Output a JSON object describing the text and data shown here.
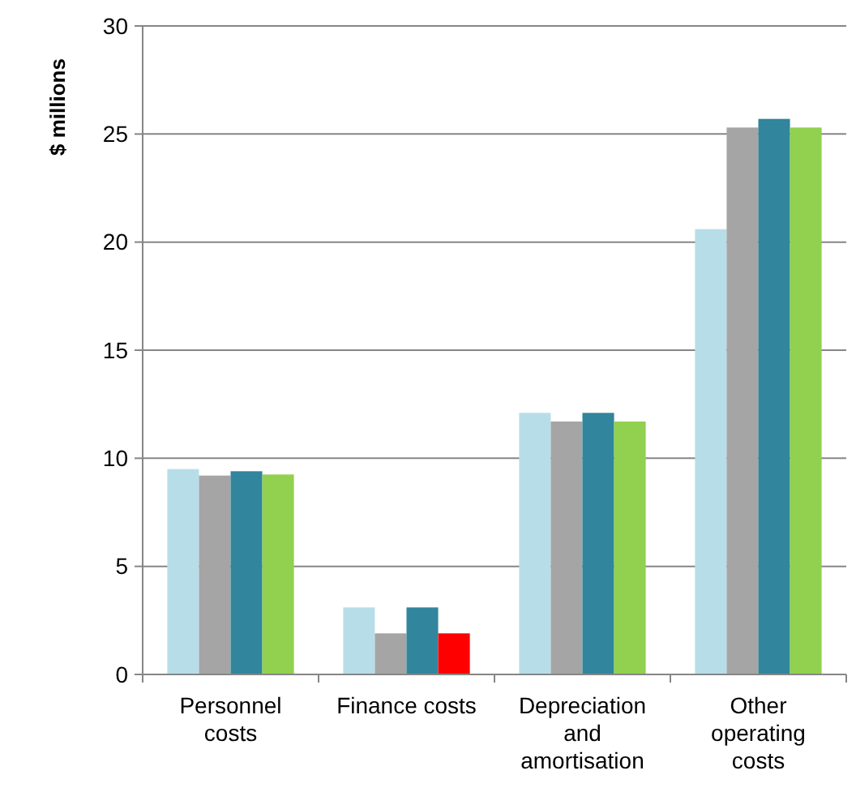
{
  "chart_data": {
    "type": "bar",
    "ylabel": "$ millions",
    "categories": [
      "Personnel costs",
      "Finance costs",
      "Depreciation and amortisation",
      "Other operating costs"
    ],
    "series": [
      {
        "color": "#b7dee8",
        "values": [
          9.5,
          3.1,
          12.1,
          20.6
        ]
      },
      {
        "color": "#a5a5a5",
        "values": [
          9.2,
          1.9,
          11.7,
          25.3
        ]
      },
      {
        "color": "#31859c",
        "values": [
          9.4,
          3.1,
          12.1,
          25.7
        ]
      },
      {
        "colors": [
          "#92d050",
          "#ff0000",
          "#92d050",
          "#92d050"
        ],
        "values": [
          9.25,
          1.9,
          11.7,
          25.3
        ]
      }
    ],
    "ylim": [
      0,
      30
    ],
    "yticks": [
      0,
      5,
      10,
      15,
      20,
      25,
      30
    ],
    "grid": "y"
  }
}
